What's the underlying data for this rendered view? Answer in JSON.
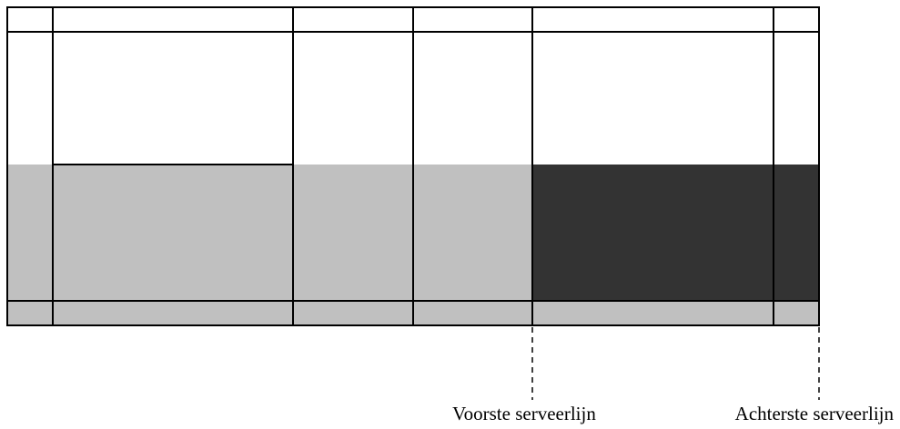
{
  "labels": {
    "front_service_line": "Voorste serveerlijn",
    "back_service_line": "Achterste serveerlijn"
  },
  "colors": {
    "light_shade": "#c0c0c0",
    "dark_shade": "#333333",
    "line": "#000000",
    "background": "#ffffff"
  }
}
